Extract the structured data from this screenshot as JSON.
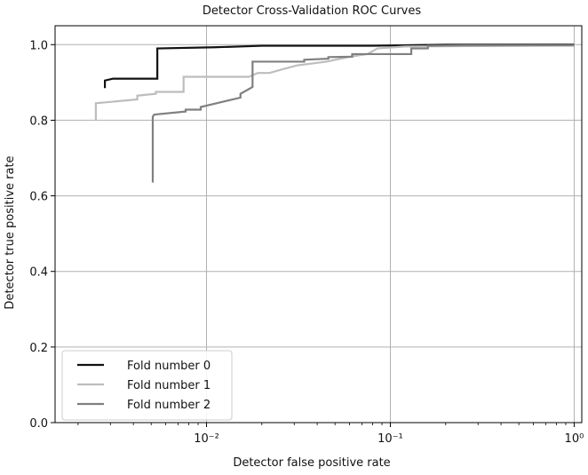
{
  "chart_data": {
    "type": "line",
    "title": "Detector Cross-Validation ROC Curves",
    "xlabel": "Detector false positive rate",
    "ylabel": "Detector true positive rate",
    "x_scale": "log",
    "xlim": [
      0.0015,
      1.1
    ],
    "ylim": [
      0.0,
      1.05
    ],
    "x_ticks": [
      {
        "value": 0.01,
        "label": "10⁻²"
      },
      {
        "value": 0.1,
        "label": "10⁻¹"
      },
      {
        "value": 1,
        "label": "10⁰"
      }
    ],
    "y_ticks": [
      {
        "value": 0.0,
        "label": "0.0"
      },
      {
        "value": 0.2,
        "label": "0.2"
      },
      {
        "value": 0.4,
        "label": "0.4"
      },
      {
        "value": 0.6,
        "label": "0.6"
      },
      {
        "value": 0.8,
        "label": "0.8"
      },
      {
        "value": 1.0,
        "label": "1.0"
      }
    ],
    "grid": true,
    "legend_position": "bottom-left",
    "series": [
      {
        "name": "Fold number 0",
        "color": "#111111",
        "x": [
          0.0028,
          0.0028,
          0.0031,
          0.0054,
          0.0054,
          0.011,
          0.02,
          0.08,
          0.2,
          1.0
        ],
        "y": [
          0.885,
          0.905,
          0.91,
          0.91,
          0.99,
          0.993,
          0.997,
          0.997,
          1.0,
          1.0
        ]
      },
      {
        "name": "Fold number 1",
        "color": "#bdbdbd",
        "x": [
          0.0025,
          0.0025,
          0.0042,
          0.0042,
          0.0053,
          0.0053,
          0.0075,
          0.0075,
          0.017,
          0.019,
          0.022,
          0.026,
          0.031,
          0.045,
          0.06,
          0.075,
          0.085,
          0.12,
          1.0
        ],
        "y": [
          0.8,
          0.845,
          0.855,
          0.865,
          0.87,
          0.875,
          0.875,
          0.915,
          0.915,
          0.925,
          0.925,
          0.935,
          0.945,
          0.955,
          0.968,
          0.975,
          0.99,
          0.995,
          0.998
        ]
      },
      {
        "name": "Fold number 2",
        "color": "#808080",
        "x": [
          0.0051,
          0.0051,
          0.0052,
          0.0077,
          0.0077,
          0.0093,
          0.0093,
          0.0153,
          0.0153,
          0.0178,
          0.0178,
          0.034,
          0.034,
          0.046,
          0.046,
          0.062,
          0.062,
          0.13,
          0.13,
          0.16,
          0.16,
          0.25,
          1.0
        ],
        "y": [
          0.635,
          0.81,
          0.815,
          0.823,
          0.828,
          0.828,
          0.835,
          0.86,
          0.87,
          0.888,
          0.955,
          0.955,
          0.96,
          0.963,
          0.967,
          0.968,
          0.975,
          0.975,
          0.99,
          0.99,
          0.997,
          0.998,
          0.998
        ]
      }
    ]
  }
}
